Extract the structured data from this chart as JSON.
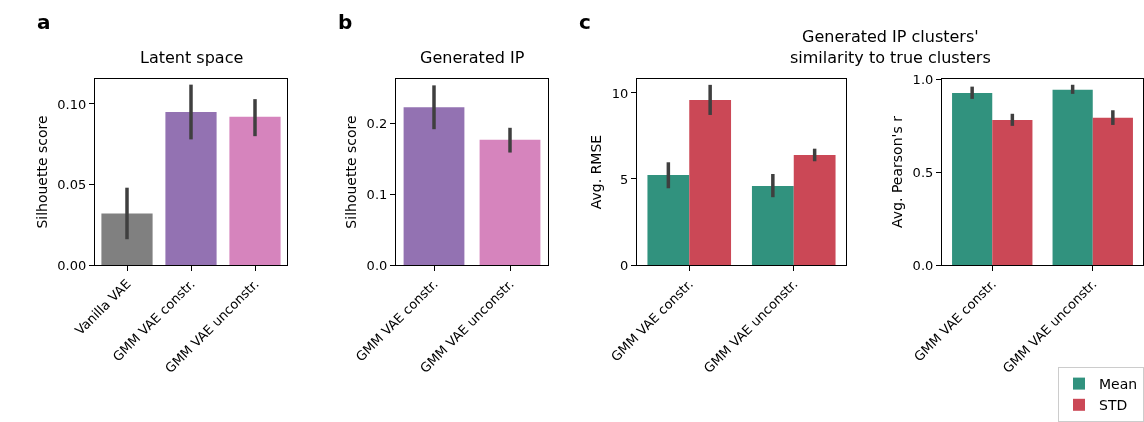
{
  "chart_data": [
    {
      "type": "bar",
      "title": "Latent space",
      "ylabel": "Silhouette score",
      "annotations": [
        "a"
      ],
      "categories": [
        "Vanilla VAE",
        "GMM VAE constr.",
        "GMM VAE unconstr."
      ],
      "values": [
        0.032,
        0.095,
        0.092
      ],
      "colors": [
        "#808080",
        "#9372b2",
        "#d684bd"
      ],
      "errors": [
        [
          0.016,
          0.048
        ],
        [
          0.078,
          0.112
        ],
        [
          0.08,
          0.103
        ]
      ],
      "ylim": [
        0,
        0.1155
      ],
      "yticks": [
        {
          "value": 0,
          "label": "0.00"
        },
        {
          "value": 0.05,
          "label": "0.05"
        },
        {
          "value": 0.1,
          "label": "0.10"
        }
      ]
    },
    {
      "type": "bar",
      "title": "Generated IP",
      "ylabel": "Silhouette score",
      "annotations": [
        "b"
      ],
      "categories": [
        "GMM VAE constr.",
        "GMM VAE unconstr."
      ],
      "values": [
        0.223,
        0.177
      ],
      "colors": [
        "#9372b2",
        "#d684bd"
      ],
      "errors": [
        [
          0.192,
          0.254
        ],
        [
          0.159,
          0.194
        ]
      ],
      "ylim": [
        0,
        0.263
      ],
      "yticks": [
        {
          "value": 0,
          "label": "0.0"
        },
        0.1,
        0.2
      ]
    },
    {
      "type": "bar",
      "title": "Generated IP clusters'\nsimilarity to true clusters",
      "ylabel": "Avg. RMSE",
      "annotations": [
        "c"
      ],
      "categories": [
        "GMM VAE constr.",
        "GMM VAE unconstr."
      ],
      "series": [
        {
          "name": "Mean",
          "color": "#31927e",
          "values": [
            5.23,
            4.59
          ],
          "errors": [
            [
              4.46,
              5.97
            ],
            [
              3.94,
              5.29
            ]
          ]
        },
        {
          "name": "STD",
          "color": "#cb4856",
          "values": [
            9.59,
            6.4
          ],
          "errors": [
            [
              8.72,
              10.47
            ],
            [
              6.03,
              6.76
            ]
          ]
        }
      ],
      "ylim": [
        0,
        10.81
      ],
      "yticks": [
        0,
        5,
        10
      ],
      "legend": "bottom right"
    },
    {
      "type": "bar",
      "ylabel": "Avg. Pearson's r",
      "categories": [
        "GMM VAE constr.",
        "GMM VAE unconstr."
      ],
      "series": [
        {
          "name": "Mean",
          "color": "#31927e",
          "values": [
            0.925,
            0.942
          ],
          "errors": [
            [
              0.893,
              0.959
            ],
            [
              0.92,
              0.969
            ]
          ]
        },
        {
          "name": "STD",
          "color": "#cb4856",
          "values": [
            0.78,
            0.791
          ],
          "errors": [
            [
              0.748,
              0.813
            ],
            [
              0.753,
              0.832
            ]
          ]
        }
      ],
      "ylim": [
        0,
        1.0
      ],
      "yticks": [
        {
          "value": 0,
          "label": "0.0"
        },
        0.5,
        {
          "value": 1,
          "label": "1.0"
        }
      ],
      "legend": "bottom right"
    }
  ]
}
